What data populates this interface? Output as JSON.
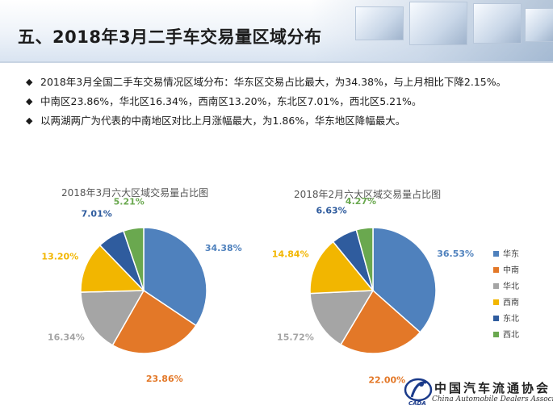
{
  "header": {
    "title": "五、2018年3月二手车交易量区域分布"
  },
  "bullets": [
    "2018年3月全国二手车交易情况区域分布：华东区交易占比最大，为34.38%，与上月相比下降2.15%。",
    "中南区23.86%，华北区16.34%，西南区13.20%，东北区7.01%，西北区5.21%。",
    "以两湖两广为代表的中南地区对比上月涨幅最大，为1.86%，华东地区降幅最大。"
  ],
  "bullet_symbol": "◆",
  "legend": {
    "items": [
      "华东",
      "中南",
      "华北",
      "西南",
      "东北",
      "西北"
    ]
  },
  "chart_data": [
    {
      "type": "pie",
      "title": "2018年3月六大区域交易量占比图",
      "categories": [
        "华东",
        "中南",
        "华北",
        "西南",
        "东北",
        "西北"
      ],
      "values": [
        34.38,
        23.86,
        16.34,
        13.2,
        7.01,
        5.21
      ],
      "labels": [
        "34.38%",
        "23.86%",
        "16.34%",
        "13.20%",
        "7.01%",
        "5.21%"
      ],
      "colors": [
        "#4f81bd",
        "#e37828",
        "#a5a5a5",
        "#f2b600",
        "#2f5c9e",
        "#6aa84f"
      ],
      "legend_position": "right"
    },
    {
      "type": "pie",
      "title": "2018年2月六大区域交易量占比图",
      "categories": [
        "华东",
        "中南",
        "华北",
        "西南",
        "东北",
        "西北"
      ],
      "values": [
        36.53,
        22.0,
        15.72,
        14.84,
        6.63,
        4.27
      ],
      "labels": [
        "36.53%",
        "22.00%",
        "15.72%",
        "14.84%",
        "6.63%",
        "4.27%"
      ],
      "colors": [
        "#4f81bd",
        "#e37828",
        "#a5a5a5",
        "#f2b600",
        "#2f5c9e",
        "#6aa84f"
      ],
      "legend_position": "right"
    }
  ],
  "logo": {
    "name": "中国汽车流通协会",
    "subtitle": "China Automobile Dealers Association",
    "abbr": "CADA"
  }
}
